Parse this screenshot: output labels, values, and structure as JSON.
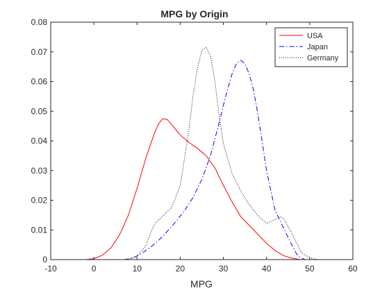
{
  "chart_data": {
    "type": "line",
    "title": "MPG by Origin",
    "xlabel": "MPG",
    "ylabel": "",
    "xlim": [
      -10,
      60
    ],
    "ylim": [
      0,
      0.08
    ],
    "xticks": [
      "-10",
      "0",
      "10",
      "20",
      "30",
      "40",
      "50",
      "60"
    ],
    "yticks": [
      "0",
      "0.01",
      "0.02",
      "0.03",
      "0.04",
      "0.05",
      "0.06",
      "0.07",
      "0.08"
    ],
    "grid": false,
    "legend_position": "top-right",
    "series": [
      {
        "name": "USA",
        "color": "#ff0000",
        "style": "solid",
        "x": [
          -2,
          0,
          2,
          4,
          6,
          8,
          10,
          12,
          14,
          15,
          16,
          17,
          18,
          20,
          22,
          24,
          26,
          28,
          30,
          32,
          34,
          36,
          38,
          40,
          42,
          44,
          46,
          48
        ],
        "y": [
          0.0,
          0.0003,
          0.0015,
          0.004,
          0.0085,
          0.015,
          0.024,
          0.034,
          0.0425,
          0.0458,
          0.0475,
          0.0472,
          0.0455,
          0.042,
          0.0395,
          0.0375,
          0.035,
          0.031,
          0.025,
          0.0195,
          0.0145,
          0.0115,
          0.0085,
          0.0055,
          0.003,
          0.0013,
          0.0004,
          0.0
        ]
      },
      {
        "name": "Japan",
        "color": "#0000ff",
        "style": "dash-dot",
        "x": [
          7,
          9,
          11,
          13,
          15,
          17,
          19,
          21,
          23,
          25,
          27,
          29,
          30,
          31,
          32,
          33,
          34,
          35,
          36,
          37,
          38,
          40,
          42,
          44,
          46,
          47,
          48,
          49
        ],
        "y": [
          0.0,
          0.0005,
          0.002,
          0.004,
          0.0065,
          0.0095,
          0.0128,
          0.0165,
          0.021,
          0.027,
          0.035,
          0.046,
          0.052,
          0.0575,
          0.0625,
          0.066,
          0.0672,
          0.066,
          0.0625,
          0.057,
          0.049,
          0.03,
          0.0165,
          0.0105,
          0.0045,
          0.0018,
          0.0005,
          0.0
        ]
      },
      {
        "name": "Germany",
        "color": "#000000",
        "style": "dotted",
        "x": [
          8,
          10,
          12,
          13,
          14,
          16,
          18,
          20,
          22,
          23,
          24,
          25,
          26,
          27,
          28,
          29,
          30,
          32,
          34,
          36,
          38,
          40,
          42,
          43,
          44,
          46,
          48,
          50,
          52
        ],
        "y": [
          0.0,
          0.0012,
          0.0045,
          0.0085,
          0.0118,
          0.0148,
          0.0175,
          0.025,
          0.0435,
          0.0555,
          0.0645,
          0.0705,
          0.0715,
          0.0688,
          0.0605,
          0.0488,
          0.039,
          0.029,
          0.0232,
          0.0185,
          0.0148,
          0.0122,
          0.0135,
          0.0145,
          0.0138,
          0.0085,
          0.0025,
          0.0005,
          0.0
        ]
      }
    ]
  }
}
